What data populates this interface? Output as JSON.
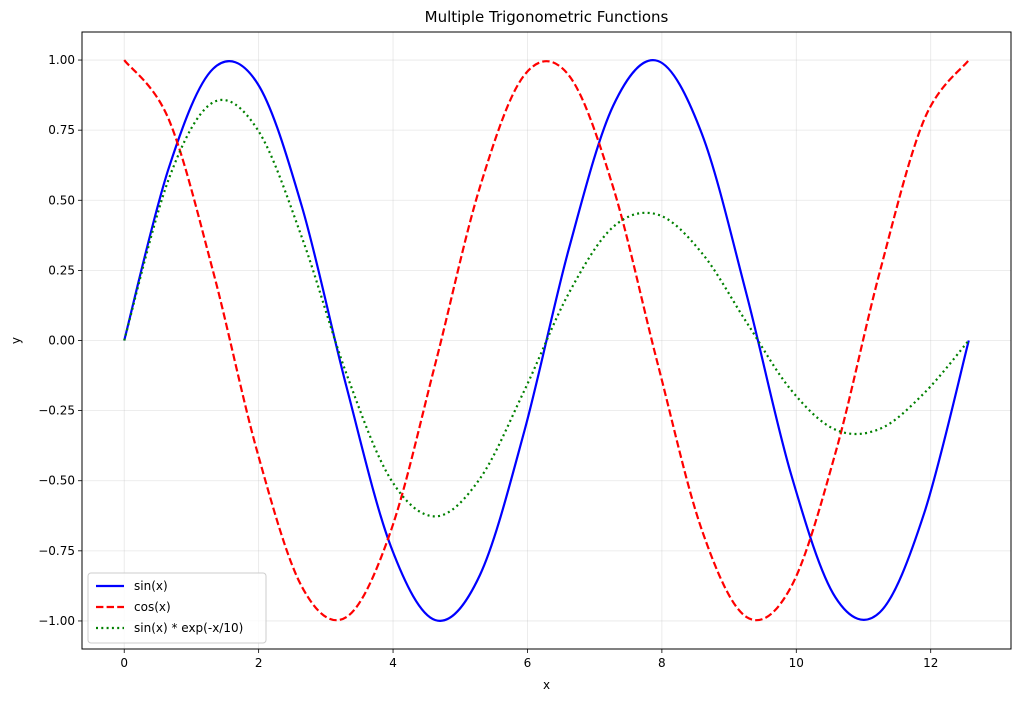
{
  "chart_data": {
    "type": "line",
    "title": "Multiple Trigonometric Functions",
    "xlabel": "x",
    "ylabel": "y",
    "xlim": [
      -0.6283,
      13.1947
    ],
    "ylim": [
      -1.1,
      1.1
    ],
    "xticks": [
      0,
      2,
      4,
      6,
      8,
      10,
      12
    ],
    "xtick_labels": [
      "0",
      "2",
      "4",
      "6",
      "8",
      "10",
      "12"
    ],
    "yticks": [
      1.0,
      0.75,
      0.5,
      0.25,
      0.0,
      -0.25,
      -0.5,
      -0.75,
      -1.0
    ],
    "ytick_labels": [
      "1.00",
      "0.75",
      "0.50",
      "0.25",
      "0.00",
      "−0.25",
      "−0.50",
      "−0.75",
      "−1.00"
    ],
    "grid": true,
    "legend_position": "lower-left",
    "x": [
      0.0,
      0.6614,
      1.3228,
      1.9842,
      2.6456,
      3.307,
      3.9684,
      4.6298,
      5.2912,
      5.9526,
      6.614,
      7.2754,
      7.9368,
      8.5982,
      9.2596,
      9.921,
      10.5824,
      11.2438,
      11.9052,
      12.5664
    ],
    "series": [
      {
        "name": "sin(x)",
        "color": "#0000ff",
        "style": "solid",
        "values": [
          0.0,
          0.614,
          0.969,
          0.916,
          0.476,
          -0.165,
          -0.735,
          -0.997,
          -0.837,
          -0.324,
          0.325,
          0.837,
          0.997,
          0.735,
          0.165,
          -0.476,
          -0.916,
          -0.969,
          -0.614,
          0.0
        ]
      },
      {
        "name": "cos(x)",
        "color": "#ff0000",
        "style": "dashed",
        "values": [
          1.0,
          0.789,
          0.246,
          -0.401,
          -0.879,
          -0.986,
          -0.678,
          -0.082,
          0.546,
          0.946,
          0.946,
          0.546,
          -0.082,
          -0.678,
          -0.986,
          -0.879,
          -0.401,
          0.246,
          0.789,
          1.0
        ]
      },
      {
        "name": "sin(x) * exp(-x/10)",
        "color": "#008000",
        "style": "dotted",
        "values": [
          0.0,
          0.575,
          0.849,
          0.752,
          0.366,
          -0.119,
          -0.496,
          -0.627,
          -0.493,
          -0.179,
          0.168,
          0.405,
          0.449,
          0.311,
          0.065,
          -0.176,
          -0.318,
          -0.315,
          -0.187,
          0.0
        ]
      }
    ]
  }
}
